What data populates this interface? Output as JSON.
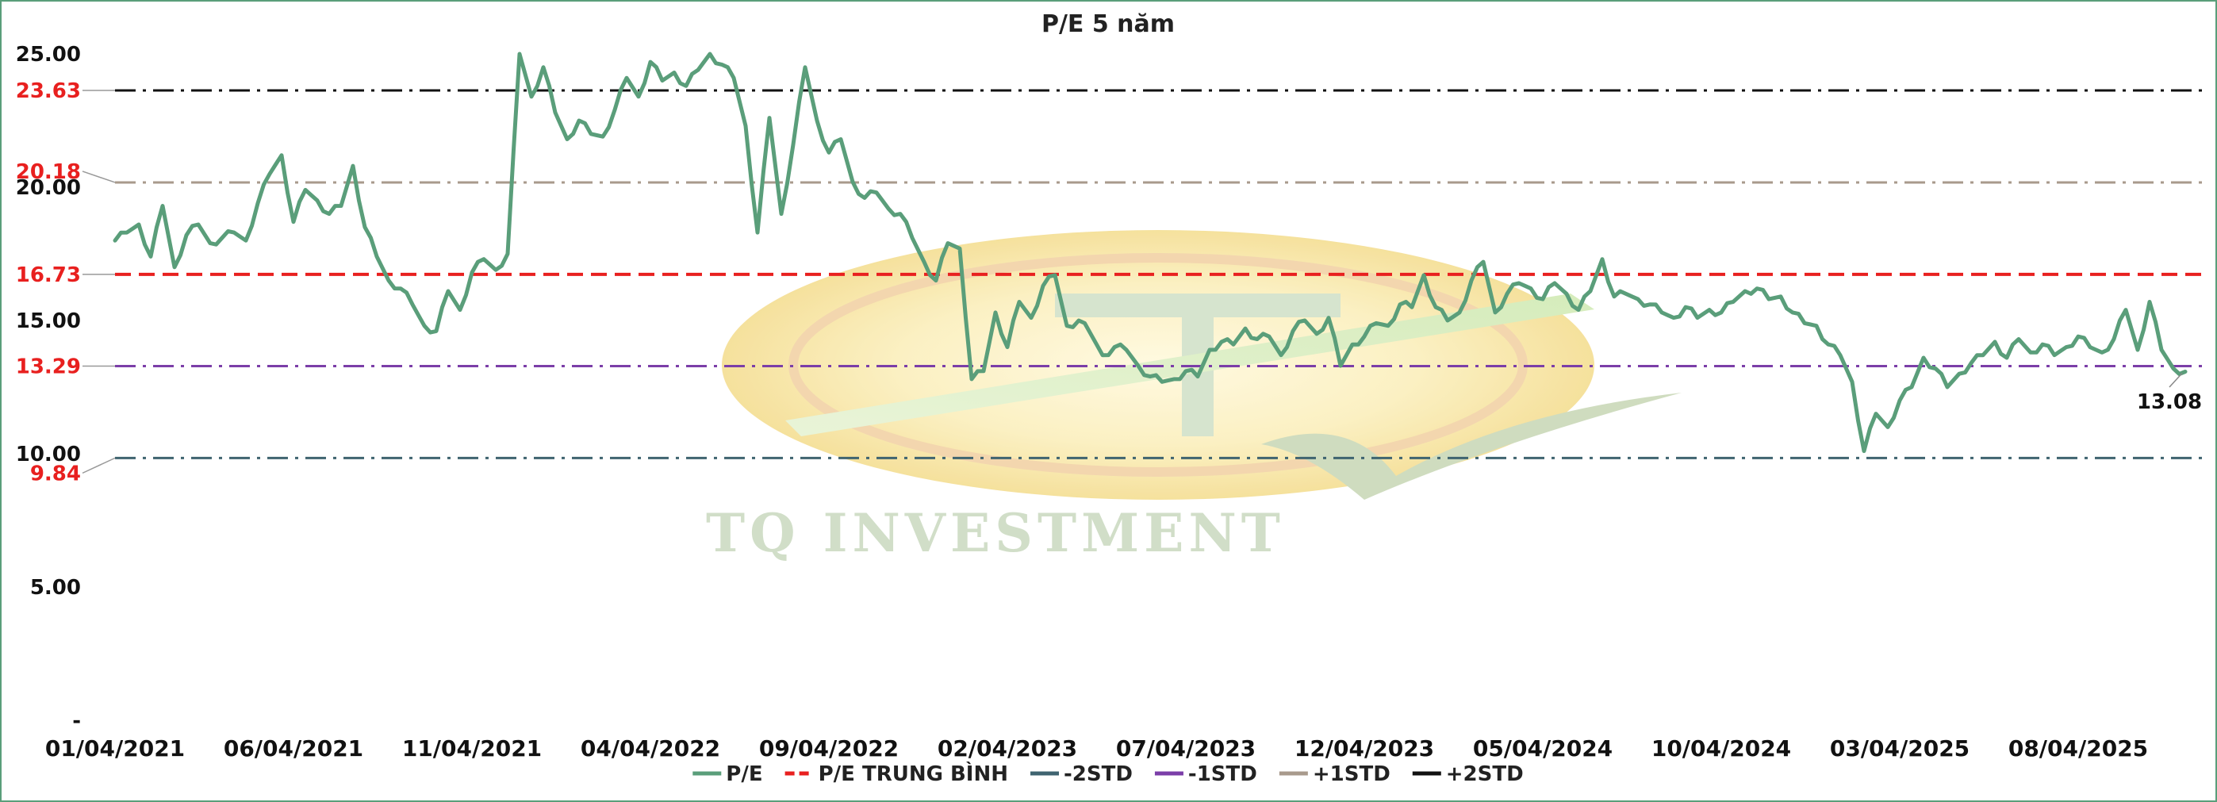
{
  "chart_data": {
    "type": "line",
    "title": "P/E 5 năm",
    "xlabel": "",
    "ylabel": "",
    "ylim": [
      0,
      25
    ],
    "y_ticks": [
      {
        "value": 0,
        "label": "-"
      },
      {
        "value": 5,
        "label": "5.00"
      },
      {
        "value": 10,
        "label": "10.00"
      },
      {
        "value": 15,
        "label": "15.00"
      },
      {
        "value": 20,
        "label": "20.00"
      },
      {
        "value": 25,
        "label": "25.00"
      }
    ],
    "x_ticks": [
      "01/04/2021",
      "06/04/2021",
      "11/04/2021",
      "04/04/2022",
      "09/04/2022",
      "02/04/2023",
      "07/04/2023",
      "12/04/2023",
      "05/04/2024",
      "10/04/2024",
      "03/04/2025",
      "08/04/2025"
    ],
    "grid": false,
    "legend_position": "bottom",
    "watermark": "TQ INVESTMENT",
    "reference_lines": [
      {
        "name": "P/E TRUNG BÌNH",
        "value": 16.73,
        "label": "16.73",
        "color": "#e8201f",
        "dash": "dash"
      },
      {
        "name": "-2STD",
        "value": 9.84,
        "label": "9.84",
        "color": "#3f6470",
        "dash": "dashdot"
      },
      {
        "name": "-1STD",
        "value": 13.29,
        "label": "13.29",
        "color": "#7b3ea8",
        "dash": "dashdot"
      },
      {
        "name": "+1STD",
        "value": 20.18,
        "label": "20.18",
        "color": "#a89a8c",
        "dash": "dashdot"
      },
      {
        "name": "+2STD",
        "value": 23.63,
        "label": "23.63",
        "color": "#111111",
        "dash": "dashdot"
      }
    ],
    "series": [
      {
        "name": "P/E",
        "color": "#5a9e7a",
        "last_value_label": "13.08",
        "x_ticks_index_range": [
          0,
          11.6
        ],
        "values": [
          18.0,
          18.3,
          18.6,
          17.4,
          19.3,
          17.0,
          18.2,
          18.6,
          17.9,
          18.1,
          18.3,
          18.0,
          19.4,
          20.5,
          21.2,
          18.7,
          19.9,
          19.5,
          19.0,
          19.3,
          20.8,
          18.5,
          17.4,
          16.5,
          16.2,
          15.6,
          14.8,
          14.6,
          16.1,
          15.4,
          16.8,
          17.3,
          16.9,
          17.5,
          25.0,
          23.4,
          24.5,
          22.8,
          21.8,
          22.5,
          22.0,
          21.9,
          22.9,
          24.1,
          23.4,
          24.7,
          24.0,
          24.3,
          23.8,
          24.4,
          25.0,
          24.6,
          24.1,
          22.3,
          18.3,
          22.6,
          19.0,
          21.6,
          24.5,
          22.5,
          21.3,
          21.8,
          20.2,
          19.6,
          19.8,
          19.2,
          19.0,
          18.1,
          17.2,
          16.5,
          17.9,
          17.7,
          12.8,
          13.1,
          15.3,
          14.0,
          15.7,
          15.1,
          16.3,
          16.7,
          14.8,
          15.0,
          14.5,
          13.7,
          14.0,
          13.9,
          13.3,
          12.9,
          12.7,
          12.8,
          13.1,
          12.9,
          13.9,
          14.2,
          14.1,
          14.7,
          14.3,
          14.4,
          13.7,
          14.6,
          15.0,
          14.5,
          15.1,
          13.3,
          14.1,
          14.4,
          14.9,
          14.8,
          15.6,
          15.5,
          16.7,
          15.5,
          15.0,
          15.3,
          16.5,
          17.2,
          15.3,
          16.0,
          16.4,
          16.2,
          15.8,
          16.4,
          16.0,
          15.4,
          16.1,
          17.3,
          15.9,
          16.0,
          15.8,
          15.6,
          15.3,
          15.1,
          15.5,
          15.1,
          15.4,
          15.3,
          15.7,
          16.1,
          16.2,
          15.8,
          15.9,
          15.3,
          14.9,
          14.8,
          14.1,
          13.7,
          12.7,
          10.1,
          11.5,
          11.0,
          12.0,
          12.5,
          13.6,
          13.2,
          12.5,
          13.0,
          13.4,
          13.7,
          14.2,
          13.6,
          14.3,
          13.8,
          14.1,
          13.7,
          14.0,
          14.4,
          14.0,
          13.8,
          14.3,
          15.4,
          13.9,
          15.7,
          13.9,
          13.2,
          13.08
        ]
      }
    ],
    "legend": [
      {
        "name": "P/E",
        "color": "#5a9e7a",
        "style": "solid"
      },
      {
        "name": "P/E TRUNG BÌNH",
        "color": "#e8201f",
        "style": "dash"
      },
      {
        "name": "-2STD",
        "color": "#3f6470",
        "style": "solid"
      },
      {
        "name": "-1STD",
        "color": "#7b3ea8",
        "style": "solid"
      },
      {
        "name": "+1STD",
        "color": "#a89a8c",
        "style": "solid"
      },
      {
        "name": "+2STD",
        "color": "#111111",
        "style": "solid"
      }
    ]
  }
}
